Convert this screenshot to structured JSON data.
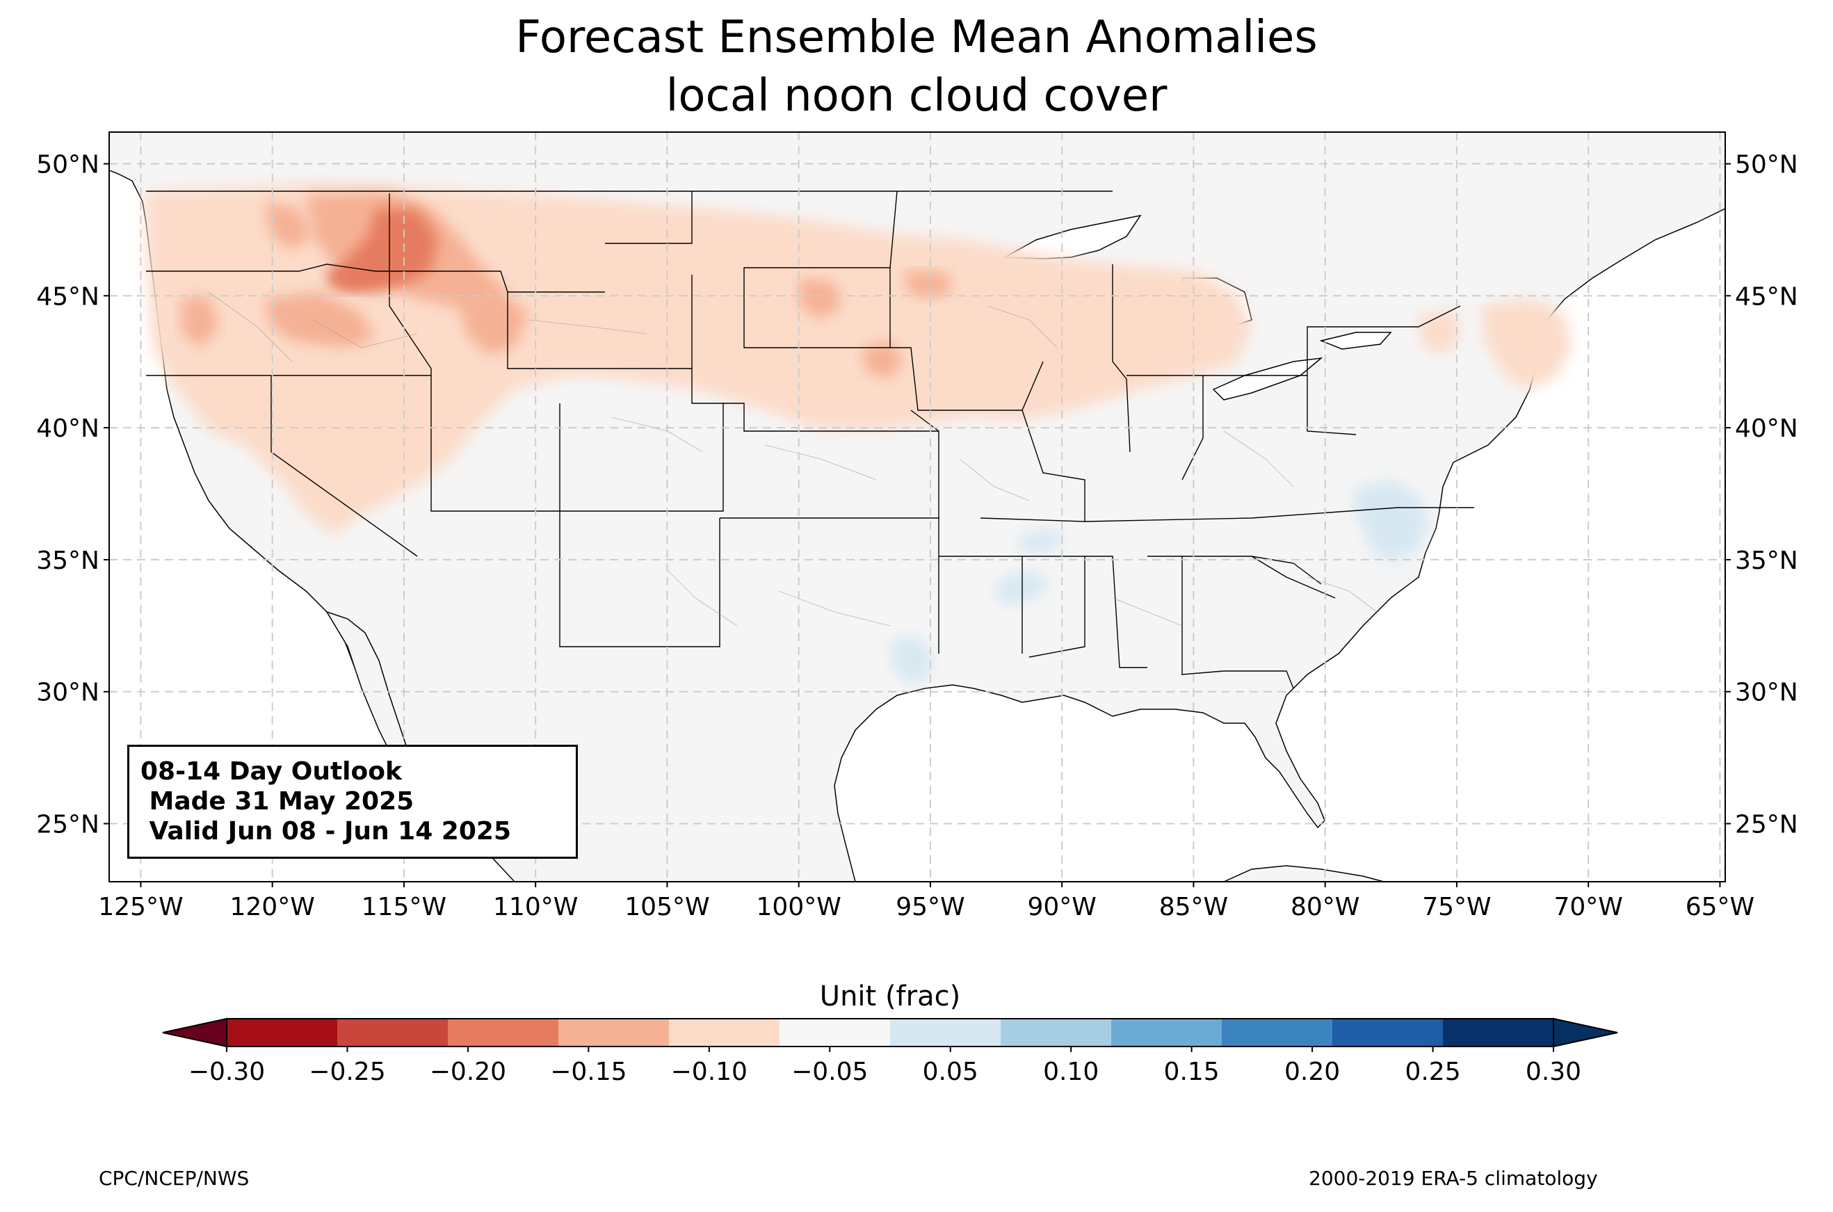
{
  "title": {
    "line1": "Forecast Ensemble Mean Anomalies",
    "line2": "local noon cloud cover"
  },
  "map": {
    "extent": {
      "lon": [
        -126.2,
        -64.8
      ],
      "lat": [
        22.8,
        51.2
      ]
    },
    "lat_ticks": [
      {
        "value": 25,
        "label": "25°N"
      },
      {
        "value": 30,
        "label": "30°N"
      },
      {
        "value": 35,
        "label": "35°N"
      },
      {
        "value": 40,
        "label": "40°N"
      },
      {
        "value": 45,
        "label": "45°N"
      },
      {
        "value": 50,
        "label": "50°N"
      }
    ],
    "lon_ticks": [
      {
        "value": -125,
        "label": "125°W"
      },
      {
        "value": -120,
        "label": "120°W"
      },
      {
        "value": -115,
        "label": "115°W"
      },
      {
        "value": -110,
        "label": "110°W"
      },
      {
        "value": -105,
        "label": "105°W"
      },
      {
        "value": -100,
        "label": "100°W"
      },
      {
        "value": -95,
        "label": "95°W"
      },
      {
        "value": -90,
        "label": "90°W"
      },
      {
        "value": -85,
        "label": "85°W"
      },
      {
        "value": -80,
        "label": "80°W"
      },
      {
        "value": -75,
        "label": "75°W"
      },
      {
        "value": -70,
        "label": "70°W"
      },
      {
        "value": -65,
        "label": "65°W"
      }
    ],
    "colors": {
      "land": "#f5f5f5",
      "frame": "#000000",
      "grid": "#cccccc"
    }
  },
  "outlook": {
    "line1": "08-14 Day Outlook",
    "line2": " Made 31 May 2025",
    "line3": " Valid Jun 08 - Jun 14 2025"
  },
  "colorbar": {
    "title": "Unit (frac)",
    "tick_labels": [
      "−0.30",
      "−0.25",
      "−0.20",
      "−0.15",
      "−0.10",
      "−0.05",
      "0.05",
      "0.10",
      "0.15",
      "0.20",
      "0.25",
      "0.30"
    ],
    "colors": [
      "#a50f15",
      "#c9463c",
      "#e67b5f",
      "#f5b194",
      "#fcdcc9",
      "#f7f7f7",
      "#d7e8f2",
      "#a6cee3",
      "#6babd4",
      "#3b84c0",
      "#1f5da6",
      "#08306b"
    ],
    "under_color": "#67001f",
    "over_color": "#053061"
  },
  "footer": {
    "left": "CPC/NCEP/NWS",
    "right": "2000-2019 ERA-5 climatology"
  }
}
